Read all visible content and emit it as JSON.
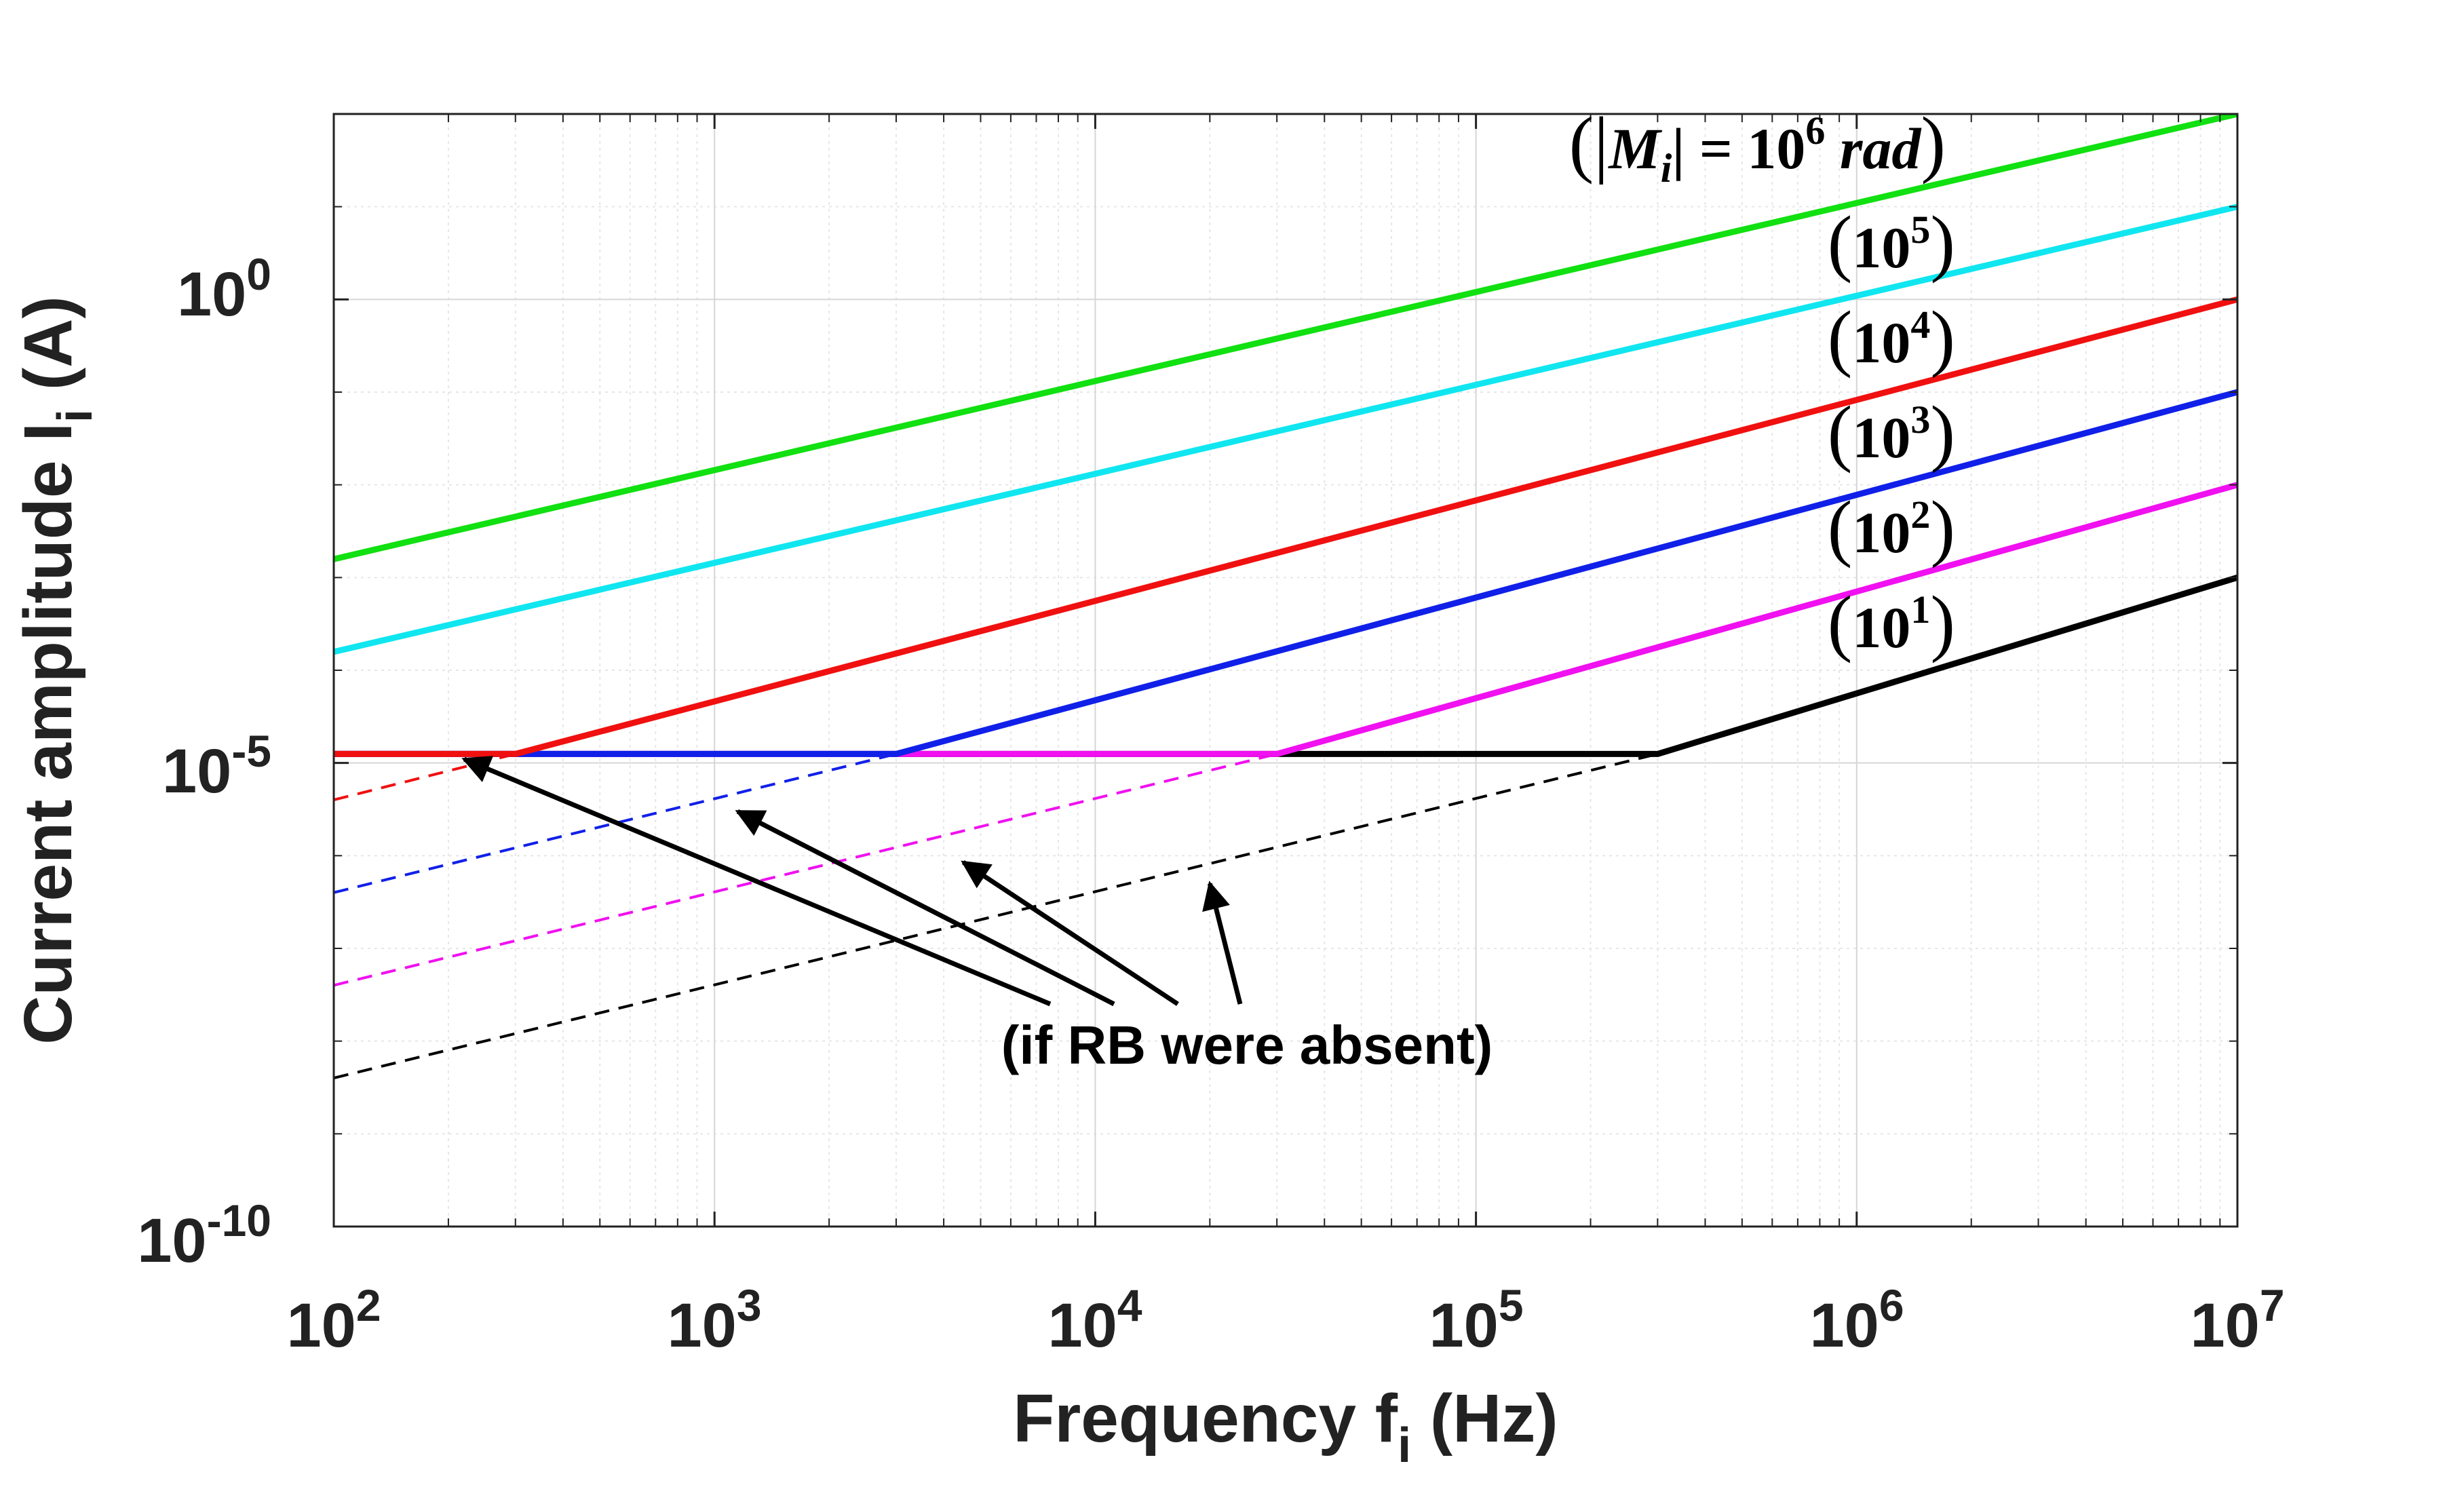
{
  "chart_data": {
    "type": "line",
    "xscale": "log",
    "yscale": "log",
    "xlim": [
      100,
      10000000
    ],
    "ylim": [
      1e-10,
      100
    ],
    "grid": true,
    "xlabel": {
      "main": "Frequency f",
      "sub": "i",
      "unit": " (Hz)"
    },
    "ylabel": {
      "main": "Current amplitude I",
      "sub": "i",
      "unit": " (A)"
    },
    "x_ticks": [
      {
        "value": 100,
        "base": "10",
        "exp": "2"
      },
      {
        "value": 1000,
        "base": "10",
        "exp": "3"
      },
      {
        "value": 10000,
        "base": "10",
        "exp": "4"
      },
      {
        "value": 100000,
        "base": "10",
        "exp": "5"
      },
      {
        "value": 1000000,
        "base": "10",
        "exp": "6"
      },
      {
        "value": 10000000,
        "base": "10",
        "exp": "7"
      }
    ],
    "y_ticks": [
      {
        "value": 1e-10,
        "base": "10",
        "exp": "-10"
      },
      {
        "value": 1e-05,
        "base": "10",
        "exp": "-5"
      },
      {
        "value": 1,
        "base": "10",
        "exp": "0"
      }
    ],
    "floor": 1.25e-05,
    "series": [
      {
        "name": "|M_i| = 10^6 rad",
        "color": "#11e011",
        "x": [
          100,
          10000000
        ],
        "y": [
          0.00158,
          100
        ]
      },
      {
        "name": "10^5",
        "color": "#10e6f0",
        "x": [
          100,
          10000000
        ],
        "y": [
          0.000158,
          10
        ]
      },
      {
        "name": "10^4",
        "color": "#f01010",
        "x": [
          100,
          300,
          10000000
        ],
        "y": [
          1.25e-05,
          1.25e-05,
          1
        ]
      },
      {
        "name": "10^3",
        "color": "#1020e8",
        "x": [
          100,
          3000,
          10000000
        ],
        "y": [
          1.25e-05,
          1.25e-05,
          0.1
        ]
      },
      {
        "name": "10^2",
        "color": "#f010f0",
        "x": [
          100,
          30000,
          10000000
        ],
        "y": [
          1.25e-05,
          1.25e-05,
          0.01
        ]
      },
      {
        "name": "10^1",
        "color": "#000000",
        "x": [
          100,
          300000,
          10000000
        ],
        "y": [
          1.25e-05,
          1.25e-05,
          0.001
        ]
      }
    ],
    "dashed_series": [
      {
        "name": "10^4 (if RB were absent)",
        "color": "#f01010",
        "x": [
          100,
          300
        ],
        "y": [
          4e-06,
          1.25e-05
        ]
      },
      {
        "name": "10^3 (if RB were absent)",
        "color": "#1020e8",
        "x": [
          100,
          3000
        ],
        "y": [
          4e-07,
          1.25e-05
        ]
      },
      {
        "name": "10^2 (if RB were absent)",
        "color": "#f010f0",
        "x": [
          100,
          30000
        ],
        "y": [
          4e-08,
          1.25e-05
        ]
      },
      {
        "name": "10^1 (if RB were absent)",
        "color": "#000000",
        "x": [
          100,
          300000
        ],
        "y": [
          4e-09,
          1.25e-05
        ]
      }
    ],
    "series_labels": [
      {
        "open": "(|",
        "var": "M",
        "sub": "i",
        "mid": "| = 10",
        "exp": "6",
        "tail": " rad",
        "close": ")"
      },
      {
        "open": "(",
        "text": "10",
        "exp": "5",
        "close": ")"
      },
      {
        "open": "(",
        "text": "10",
        "exp": "4",
        "close": ")"
      },
      {
        "open": "(",
        "text": "10",
        "exp": "3",
        "close": ")"
      },
      {
        "open": "(",
        "text": "10",
        "exp": "2",
        "close": ")"
      },
      {
        "open": "(",
        "text": "10",
        "exp": "1",
        "close": ")"
      }
    ],
    "annotation": {
      "text": "(if RB were absent)",
      "arrow_targets": [
        {
          "x": 220,
          "y": 1.1e-05
        },
        {
          "x": 1150,
          "y": 3e-06
        },
        {
          "x": 4500,
          "y": 8.5e-07
        },
        {
          "x": 20000,
          "y": 5e-07
        }
      ]
    }
  }
}
